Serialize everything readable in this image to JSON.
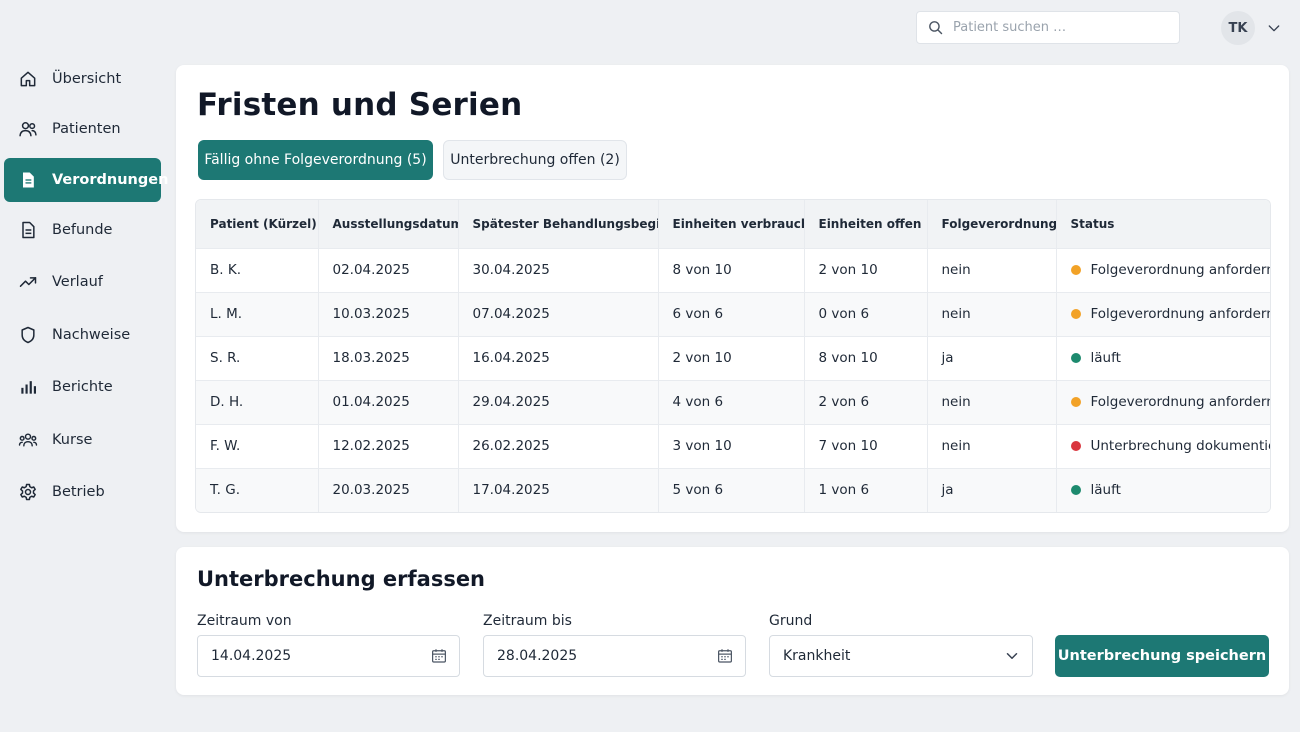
{
  "header": {
    "search_placeholder": "Patient suchen …",
    "user_initials": "TK"
  },
  "sidebar": {
    "items": [
      {
        "label": "Übersicht",
        "icon": "home-icon"
      },
      {
        "label": "Patienten",
        "icon": "users-icon"
      },
      {
        "label": "Verordnungen",
        "icon": "document-icon",
        "active": true
      },
      {
        "label": "Befunde",
        "icon": "file-text-icon"
      },
      {
        "label": "Verlauf",
        "icon": "trending-up-icon"
      },
      {
        "label": "Nachweise",
        "icon": "shield-icon"
      },
      {
        "label": "Berichte",
        "icon": "bar-chart-icon"
      },
      {
        "label": "Kurse",
        "icon": "group-icon"
      },
      {
        "label": "Betrieb",
        "icon": "gear-icon"
      }
    ]
  },
  "main": {
    "title": "Fristen und Serien",
    "tabs": [
      {
        "label": "Fällig ohne Folgeverordnung (5)",
        "active": true
      },
      {
        "label": "Unterbrechung offen (2)",
        "active": false
      }
    ],
    "table": {
      "columns": [
        "Patient (Kürzel)",
        "Ausstellungsdatum",
        "Spätester Behandlungsbeginn",
        "Einheiten verbraucht",
        "Einheiten offen",
        "Folgeverordnung",
        "Status"
      ],
      "rows": [
        {
          "patient": "B. K.",
          "issued": "02.04.2025",
          "latest_start": "30.04.2025",
          "used": "8 von 10",
          "open": "2 von 10",
          "follow_up": "nein",
          "status": "Folgeverordnung anfordern",
          "status_color": "#f2a227"
        },
        {
          "patient": "L. M.",
          "issued": "10.03.2025",
          "latest_start": "07.04.2025",
          "used": "6 von 6",
          "open": "0 von 6",
          "follow_up": "nein",
          "status": "Folgeverordnung anfordern",
          "status_color": "#f2a227"
        },
        {
          "patient": "S. R.",
          "issued": "18.03.2025",
          "latest_start": "16.04.2025",
          "used": "2 von 10",
          "open": "8 von 10",
          "follow_up": "ja",
          "status": "läuft",
          "status_color": "#1d8a6e"
        },
        {
          "patient": "D. H.",
          "issued": "01.04.2025",
          "latest_start": "29.04.2025",
          "used": "4 von 6",
          "open": "2 von 6",
          "follow_up": "nein",
          "status": "Folgeverordnung anfordern",
          "status_color": "#f2a227"
        },
        {
          "patient": "F. W.",
          "issued": "12.02.2025",
          "latest_start": "26.02.2025",
          "used": "3 von 10",
          "open": "7 von 10",
          "follow_up": "nein",
          "status": "Unterbrechung dokumentiert",
          "status_color": "#d9363e"
        },
        {
          "patient": "T. G.",
          "issued": "20.03.2025",
          "latest_start": "17.04.2025",
          "used": "5 von 6",
          "open": "1 von 6",
          "follow_up": "ja",
          "status": "läuft",
          "status_color": "#1d8a6e"
        }
      ]
    }
  },
  "form": {
    "title": "Unterbrechung erfassen",
    "from_label": "Zeitraum von",
    "from_value": "14.04.2025",
    "to_label": "Zeitraum bis",
    "to_value": "28.04.2025",
    "reason_label": "Grund",
    "reason_value": "Krankheit",
    "save_label": "Unterbrechung speichern"
  },
  "colors": {
    "accent": "#1d7874",
    "background": "#eef0f3"
  }
}
